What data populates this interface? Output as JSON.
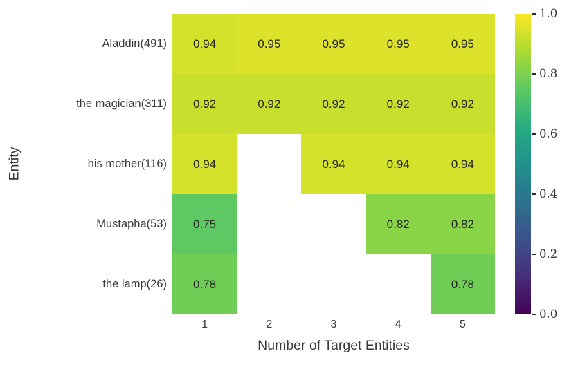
{
  "colors": {
    "background": "#ffffff",
    "text": "#2b2b2b",
    "annotation_text": "#262626"
  },
  "chart_data": {
    "type": "heatmap",
    "title": "",
    "xlabel": "Number of Target Entities",
    "ylabel": "Entity",
    "x_ticks": [
      "1",
      "2",
      "3",
      "4",
      "5"
    ],
    "rows": [
      {
        "label": "Aladdin(491)",
        "values": [
          0.94,
          0.95,
          0.95,
          0.95,
          0.95
        ]
      },
      {
        "label": "the magician(311)",
        "values": [
          0.92,
          0.92,
          0.92,
          0.92,
          0.92
        ]
      },
      {
        "label": "his mother(116)",
        "values": [
          0.94,
          null,
          0.94,
          0.94,
          0.94
        ]
      },
      {
        "label": "Mustapha(53)",
        "values": [
          0.75,
          null,
          null,
          0.82,
          0.82
        ]
      },
      {
        "label": "the lamp(26)",
        "values": [
          0.78,
          null,
          null,
          null,
          0.78
        ]
      }
    ],
    "value_decimals": 2,
    "colormap": {
      "name": "viridis",
      "stops": [
        {
          "t": 0.0,
          "color": "#440154"
        },
        {
          "t": 0.125,
          "color": "#472d7b"
        },
        {
          "t": 0.25,
          "color": "#3b528b"
        },
        {
          "t": 0.375,
          "color": "#2c728e"
        },
        {
          "t": 0.5,
          "color": "#21918c"
        },
        {
          "t": 0.625,
          "color": "#27ad81"
        },
        {
          "t": 0.75,
          "color": "#5ec962"
        },
        {
          "t": 0.875,
          "color": "#aadc32"
        },
        {
          "t": 1.0,
          "color": "#fde725"
        }
      ]
    },
    "colorbar": {
      "vmin": 0.0,
      "vmax": 1.0,
      "ticks": [
        "1.0",
        "0.8",
        "0.6",
        "0.4",
        "0.2",
        "0.0"
      ],
      "position": "right"
    },
    "grid": false,
    "legend": "none"
  }
}
